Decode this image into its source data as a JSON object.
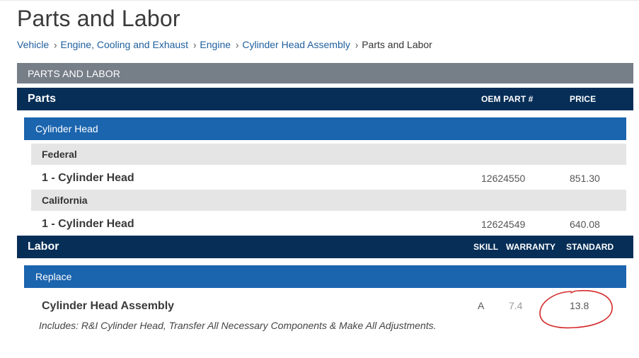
{
  "page": {
    "title": "Parts and Labor"
  },
  "breadcrumb": [
    {
      "label": "Vehicle"
    },
    {
      "label": "Engine, Cooling and Exhaust"
    },
    {
      "label": "Engine"
    },
    {
      "label": "Cylinder Head Assembly"
    },
    {
      "label": "Parts and Labor"
    }
  ],
  "section": {
    "label": "PARTS AND LABOR"
  },
  "parts": {
    "title": "Parts",
    "col_oem": "OEM PART #",
    "col_price": "PRICE",
    "group": "Cylinder Head",
    "subgroups": [
      {
        "name": "Federal",
        "item": {
          "label": "1 - Cylinder Head",
          "oem": "12624550",
          "price": "851.30"
        }
      },
      {
        "name": "California",
        "item": {
          "label": "1 - Cylinder Head",
          "oem": "12624549",
          "price": "640.08"
        }
      }
    ]
  },
  "labor": {
    "title": "Labor",
    "col_skill": "SKILL",
    "col_warranty": "WARRANTY",
    "col_standard": "STANDARD",
    "group": "Replace",
    "item": {
      "label": "Cylinder Head Assembly",
      "skill": "A",
      "warranty": "7.4",
      "standard": "13.8",
      "includes": "Includes: R&I Cylinder Head, Transfer All Necessary Components & Make All Adjustments."
    }
  },
  "colors": {
    "dark_header": "#062e57",
    "group_blue": "#1b64ae",
    "section_grey": "#767e88",
    "subgroup_grey": "#e5e5e5",
    "link": "#1e5f9e",
    "annotation_red": "#d42a2a"
  },
  "icons": [
    "chevron-right-icon"
  ]
}
